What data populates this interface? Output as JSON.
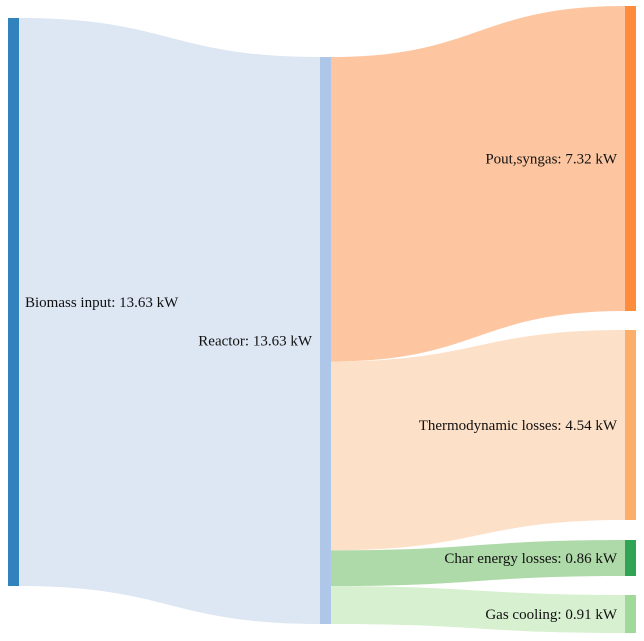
{
  "chart_data": {
    "type": "sankey",
    "unit": "kW",
    "nodes": [
      {
        "id": "biomass",
        "label": "Biomass input: 13.63 kW",
        "value": 13.63,
        "color": "#3182bd"
      },
      {
        "id": "reactor",
        "label": "Reactor: 13.63 kW",
        "value": 13.63,
        "color": "#aec7e8"
      },
      {
        "id": "syngas",
        "label": "Pout,syngas: 7.32 kW",
        "value": 7.32,
        "color": "#fd8d3c"
      },
      {
        "id": "thermo",
        "label": "Thermodynamic losses: 4.54 kW",
        "value": 4.54,
        "color": "#fdae6b"
      },
      {
        "id": "char",
        "label": "Char energy losses: 0.86 kW",
        "value": 0.86,
        "color": "#31a354"
      },
      {
        "id": "gascool",
        "label": "Gas cooling: 0.91 kW",
        "value": 0.91,
        "color": "#a1d99b"
      }
    ],
    "links": [
      {
        "source": "biomass",
        "target": "reactor",
        "value": 13.63,
        "color": "#dde6f3"
      },
      {
        "source": "reactor",
        "target": "syngas",
        "value": 7.32,
        "color": "#fdc6a0"
      },
      {
        "source": "reactor",
        "target": "thermo",
        "value": 4.54,
        "color": "#fde0c8"
      },
      {
        "source": "reactor",
        "target": "char",
        "value": 0.86,
        "color": "#aed9a8"
      },
      {
        "source": "reactor",
        "target": "gascool",
        "value": 0.91,
        "color": "#d6f0d0"
      }
    ]
  }
}
